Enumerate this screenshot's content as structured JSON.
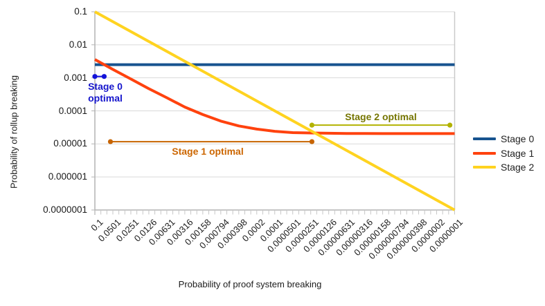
{
  "chart_data": {
    "type": "line",
    "xlabel": "Probability of proof system breaking",
    "ylabel": "Probability of rollup breaking",
    "x_scale": "log",
    "y_scale": "log",
    "x_descending": true,
    "x_range": [
      0.1,
      1e-07
    ],
    "y_range": [
      0.1,
      1e-07
    ],
    "grid": "horizontal-only",
    "x_tick_labels": [
      "0.1",
      "0.0501",
      "0.0251",
      "0.0126",
      "0.00631",
      "0.00316",
      "0.00158",
      "0.000794",
      "0.000398",
      "0.0002",
      "0.0001",
      "0.0000501",
      "0.0000251",
      "0.0000126",
      "0.00000631",
      "0.00000316",
      "0.00000158",
      "0.000000794",
      "0.000000398",
      "0.0000002",
      "0.0000001"
    ],
    "y_tick_labels": [
      "0.1",
      "0.01",
      "0.001",
      "0.0001",
      "0.00001",
      "0.000001",
      "0.0000001"
    ],
    "series": [
      {
        "name": "Stage 0",
        "color": "#17538f",
        "x": [
          0.1,
          1e-07
        ],
        "y": [
          0.0025,
          0.0025
        ]
      },
      {
        "name": "Stage 1",
        "color": "#ff420e",
        "x": [
          0.1,
          0.0501,
          0.0251,
          0.0126,
          0.00631,
          0.00316,
          0.00158,
          0.000794,
          0.000398,
          0.0002,
          0.0001,
          5.01e-05,
          2.51e-05,
          1.26e-05,
          6.31e-06,
          3.16e-06,
          1.58e-06,
          7.94e-07,
          3.98e-07,
          2e-07,
          1e-07
        ],
        "y": [
          0.0036,
          0.0018,
          0.00092,
          0.00047,
          0.00025,
          0.00013,
          7.7e-05,
          4.9e-05,
          3.5e-05,
          2.8e-05,
          2.4e-05,
          2.2e-05,
          2.14e-05,
          2.1e-05,
          2.07e-05,
          2.06e-05,
          2.05e-05,
          2.05e-05,
          2.05e-05,
          2.05e-05,
          2.05e-05
        ]
      },
      {
        "name": "Stage 2",
        "color": "#ffd320",
        "x": [
          0.1,
          1e-07
        ],
        "y": [
          0.1,
          1e-07
        ]
      }
    ],
    "annotations": [
      {
        "name": "stage0-optimal",
        "label_line1": "Stage 0",
        "label_line2": "optimal",
        "x_from": 0.1,
        "x_to": 0.07,
        "y": 0.0011,
        "marker_color": "#1212d9",
        "text_color": "#1515cc"
      },
      {
        "name": "stage1-optimal",
        "text": "Stage 1 optimal",
        "x_from": 0.055,
        "x_to": 2.4e-05,
        "y": 1.17e-05,
        "marker_color": "#c76400",
        "text_color": "#cc6600"
      },
      {
        "name": "stage2-optimal",
        "text": "Stage 2 optimal",
        "x_from": 2.4e-05,
        "x_to": 1.2e-07,
        "y": 3.7e-05,
        "marker_color": "#b2b200",
        "text_color": "#757500"
      }
    ],
    "legend_position": "right"
  },
  "legend": {
    "items": [
      {
        "label": "Stage 0",
        "color": "#17538f"
      },
      {
        "label": "Stage 1",
        "color": "#ff420e"
      },
      {
        "label": "Stage 2",
        "color": "#ffd320"
      }
    ]
  }
}
